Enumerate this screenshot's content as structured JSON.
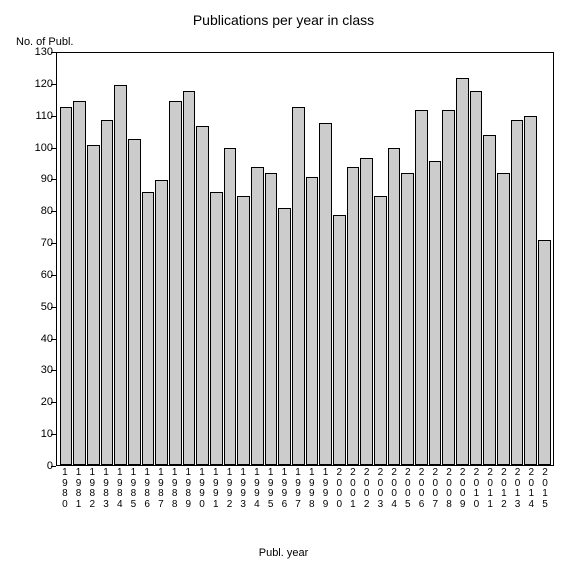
{
  "chart": {
    "type": "bar",
    "title": "Publications per year in class",
    "title_fontsize": 14,
    "y_axis_title": "No. of Publ.",
    "x_axis_title": "Publ. year",
    "label_fontsize": 11,
    "tick_fontsize": 11,
    "ylim": [
      0,
      130
    ],
    "ytick_step": 10,
    "yticks": [
      0,
      10,
      20,
      30,
      40,
      50,
      60,
      70,
      80,
      90,
      100,
      110,
      120,
      130
    ],
    "background_color": "#ffffff",
    "plot_border_color": "#000000",
    "bar_color": "#cccccc",
    "bar_border_color": "#000000",
    "bar_width": 1.0,
    "categories": [
      "1980",
      "1981",
      "1982",
      "1983",
      "1984",
      "1985",
      "1986",
      "1987",
      "1988",
      "1989",
      "1990",
      "1991",
      "1992",
      "1993",
      "1994",
      "1995",
      "1996",
      "1997",
      "1998",
      "1999",
      "2000",
      "2001",
      "2002",
      "2003",
      "2004",
      "2005",
      "2006",
      "2007",
      "2008",
      "2009",
      "2010",
      "2011",
      "2012",
      "2013",
      "2014",
      "2015"
    ],
    "values": [
      113,
      115,
      101,
      109,
      120,
      103,
      86,
      90,
      115,
      118,
      107,
      86,
      100,
      85,
      94,
      92,
      81,
      113,
      91,
      108,
      79,
      94,
      97,
      85,
      100,
      92,
      112,
      96,
      112,
      122,
      118,
      104,
      92,
      109,
      110,
      71
    ]
  }
}
